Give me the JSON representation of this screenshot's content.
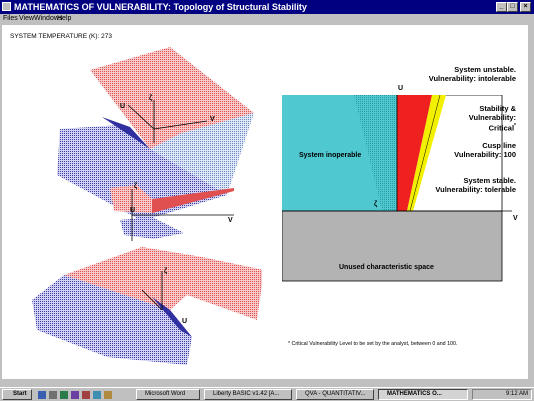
{
  "window": {
    "title": "MATHEMATICS OF VULNERABILITY: Topology of Structural Stability",
    "buttons": {
      "minimize": "_",
      "maximize": "□",
      "close": "×"
    }
  },
  "menu": [
    "Files",
    "View",
    "Windows",
    "Help"
  ],
  "system_temperature": "SYSTEM TEMPERATURE (K): 273",
  "surface_labels": {
    "top": {
      "zeta": "ζ",
      "u": "U",
      "v": "V"
    },
    "middle": {
      "zeta": "ζ",
      "u": "U",
      "v": "V"
    },
    "bottom": {
      "zeta": "ζ",
      "u": "U"
    }
  },
  "diagram": {
    "u_axis": "U",
    "v_axis": "V",
    "zeta": "ζ",
    "inoperable": "System inoperable",
    "unused": "Unused characteristic space",
    "unstable_1": "System unstable.",
    "unstable_2": "Vulnerability: intolerable",
    "critical_1": "Stability &",
    "critical_2": "Vulnerability:",
    "critical_3": "Critical",
    "critical_mark": "*",
    "cusp_1": "Cusp line",
    "cusp_2": "Vulnerability: 100",
    "stable_1": "System stable.",
    "stable_2": "Vulnerability: tolerable",
    "footnote": "* Critical Vulnerability Level to be set by the analyst, between 0 and 100.",
    "colors": {
      "inoperable": "#4fc8d0",
      "unstable": "#ef2020",
      "critical": "#f2f000",
      "unused": "#b3b3b3"
    }
  },
  "taskbar": {
    "start": "Start",
    "items": [
      "Microsoft Word",
      "Liberty BASIC v1.42 [A...",
      "QVA - QUANTITATIV...",
      "MATHEMATICS O..."
    ],
    "time": "9:12 AM"
  }
}
